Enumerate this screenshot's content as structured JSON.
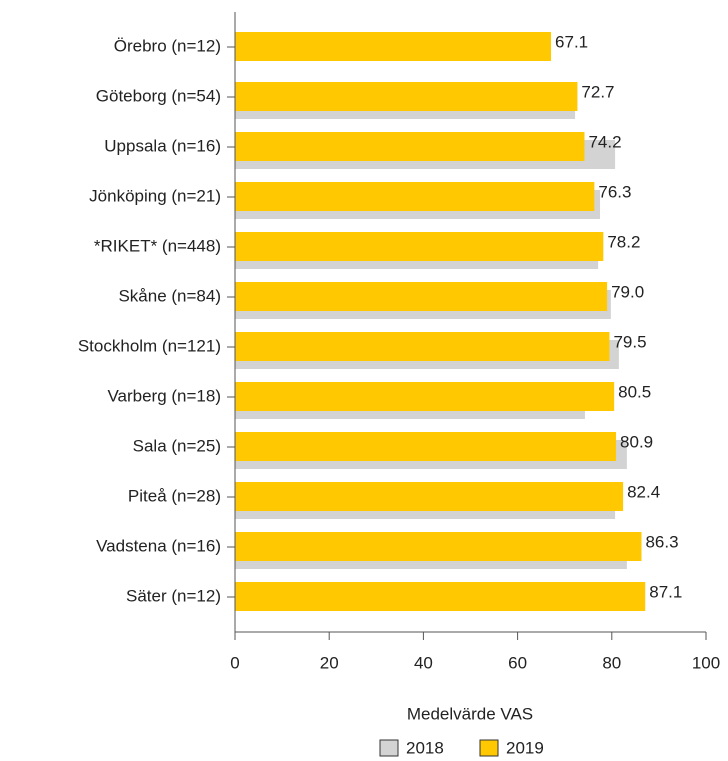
{
  "chart_data": {
    "type": "bar",
    "orientation": "horizontal",
    "x_label": "Medelvärde VAS",
    "categories": [
      "Örebro (n=12)",
      "Göteborg (n=54)",
      "Uppsala (n=16)",
      "Jönköping (n=21)",
      "*RIKET* (n=448)",
      "Skåne (n=84)",
      "Stockholm (n=121)",
      "Varberg (n=18)",
      "Sala (n=25)",
      "Piteå (n=28)",
      "Vadstena (n=16)",
      "Säter (n=12)"
    ],
    "series": [
      {
        "name": "2018",
        "color": "#d3d3d3",
        "values": [
          null,
          72.2,
          80.7,
          77.5,
          77.1,
          79.8,
          81.5,
          74.3,
          83.2,
          80.7,
          83.2,
          null
        ]
      },
      {
        "name": "2019",
        "color": "#ffc800",
        "values": [
          67.1,
          72.7,
          74.2,
          76.3,
          78.2,
          79,
          79.5,
          80.5,
          80.9,
          82.4,
          86.3,
          87.1
        ],
        "value_labels": [
          "67.1",
          "72.7",
          "74.2",
          "76.3",
          "78.2",
          "79.0",
          "79.5",
          "80.5",
          "80.9",
          "82.4",
          "86.3",
          "87.1"
        ]
      }
    ],
    "xlim": [
      0,
      100
    ],
    "xticks": [
      0,
      20,
      40,
      60,
      80,
      100
    ],
    "legend": "bottom"
  }
}
